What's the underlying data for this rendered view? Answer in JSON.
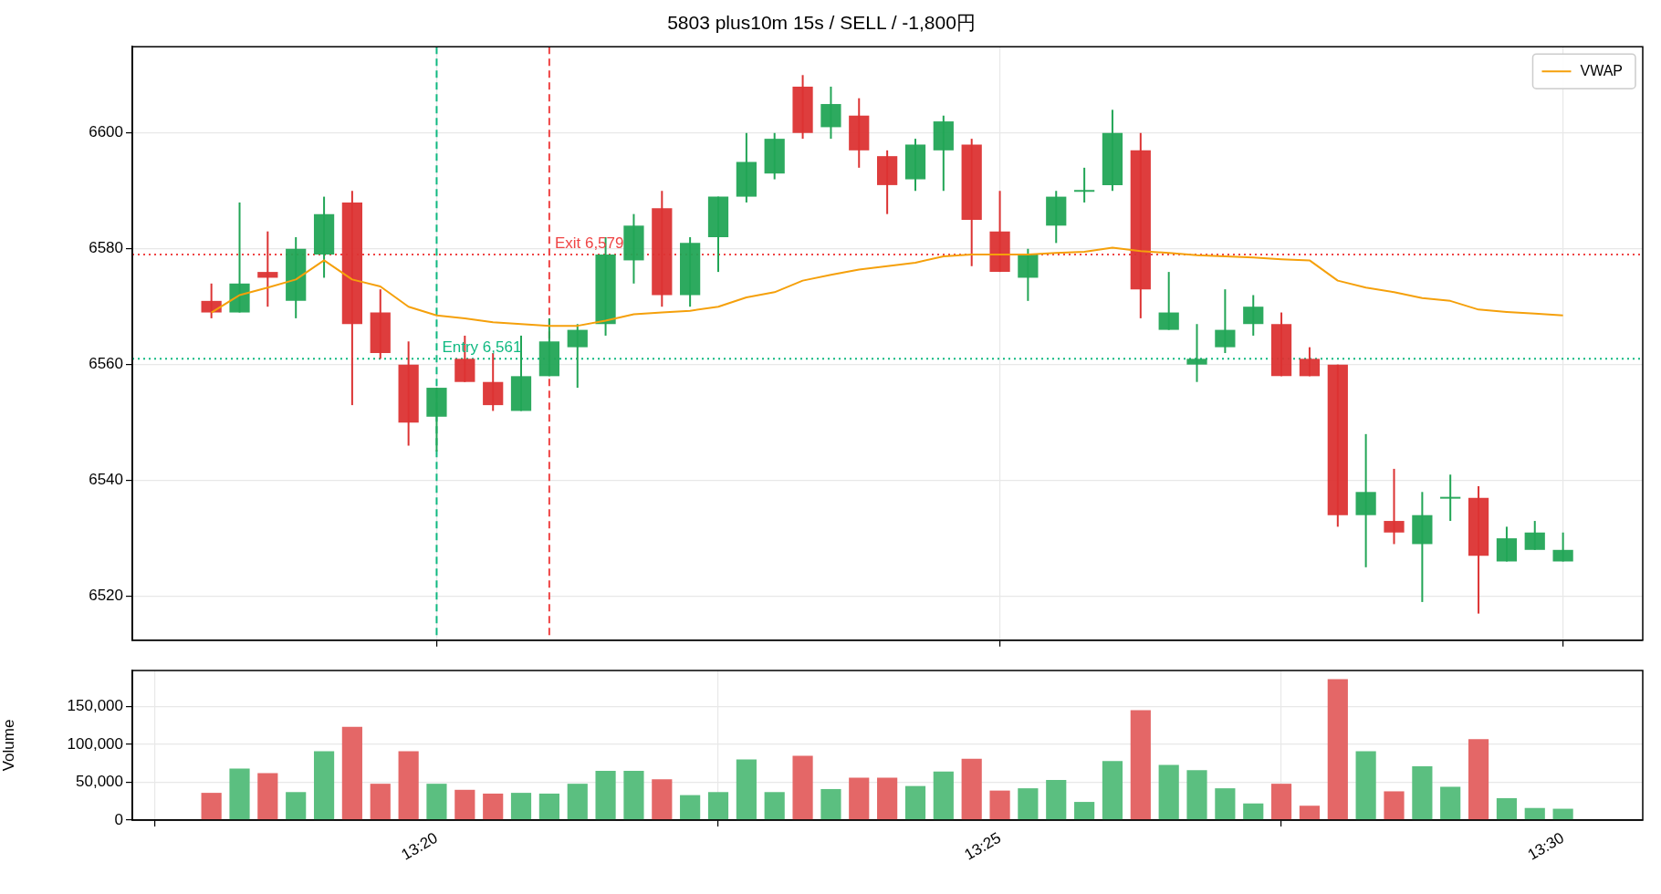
{
  "chart_data": [
    {
      "type": "candlestick",
      "title": "5803 plus10m 15s / SELL / -1,800円",
      "x": [
        13.3,
        13.30417,
        13.30833,
        13.3125,
        13.31667,
        13.32083,
        13.325,
        13.32917,
        13.33333,
        13.3375,
        13.34167,
        13.34583,
        13.35,
        13.35417,
        13.35833,
        13.3625,
        13.36667,
        13.37083,
        13.375,
        13.37917,
        13.38333,
        13.3875,
        13.39167,
        13.39583,
        13.4,
        13.40417,
        13.40833,
        13.4125,
        13.41667,
        13.42083,
        13.425,
        13.42917,
        13.43333,
        13.4375,
        13.44167,
        13.44583,
        13.45,
        13.45417,
        13.45833,
        13.4625,
        13.46667,
        13.47083,
        13.475,
        13.47917,
        13.48333,
        13.4875,
        13.49167,
        13.49583,
        13.5
      ],
      "ohlc": [
        [
          6571,
          6574,
          6568,
          6569
        ],
        [
          6569,
          6588,
          6569,
          6574
        ],
        [
          6576,
          6583,
          6570,
          6575
        ],
        [
          6571,
          6582,
          6568,
          6580
        ],
        [
          6579,
          6589,
          6575,
          6586
        ],
        [
          6588,
          6590,
          6553,
          6567
        ],
        [
          6569,
          6573,
          6561,
          6562
        ],
        [
          6560,
          6564,
          6546,
          6550
        ],
        [
          6551,
          6556,
          6545,
          6556
        ],
        [
          6561,
          6565,
          6557,
          6557
        ],
        [
          6557,
          6562,
          6552,
          6553
        ],
        [
          6552,
          6565,
          6552,
          6558
        ],
        [
          6558,
          6568,
          6558,
          6564
        ],
        [
          6563,
          6567,
          6556,
          6566
        ],
        [
          6567,
          6582,
          6565,
          6579
        ],
        [
          6578,
          6586,
          6574,
          6584
        ],
        [
          6587,
          6590,
          6570,
          6572
        ],
        [
          6572,
          6582,
          6570,
          6581
        ],
        [
          6582,
          6589,
          6576,
          6589
        ],
        [
          6589,
          6600,
          6588,
          6595
        ],
        [
          6593,
          6600,
          6592,
          6599
        ],
        [
          6608,
          6610,
          6599,
          6600
        ],
        [
          6601,
          6608,
          6599,
          6605
        ],
        [
          6603,
          6606,
          6594,
          6597
        ],
        [
          6596,
          6597,
          6586,
          6591
        ],
        [
          6592,
          6599,
          6590,
          6598
        ],
        [
          6597,
          6603,
          6590,
          6602
        ],
        [
          6598,
          6599,
          6577,
          6585
        ],
        [
          6583,
          6590,
          6576,
          6576
        ],
        [
          6575,
          6580,
          6571,
          6579
        ],
        [
          6584,
          6590,
          6581,
          6589
        ],
        [
          6590,
          6594,
          6588,
          6590
        ],
        [
          6591,
          6604,
          6590,
          6600
        ],
        [
          6597,
          6600,
          6568,
          6573
        ],
        [
          6566,
          6576,
          6566,
          6569
        ],
        [
          6560,
          6567,
          6557,
          6561
        ],
        [
          6563,
          6573,
          6562,
          6566
        ],
        [
          6567,
          6572,
          6565,
          6570
        ],
        [
          6567,
          6569,
          6558,
          6558
        ],
        [
          6561,
          6563,
          6558,
          6558
        ],
        [
          6560,
          6560,
          6532,
          6534
        ],
        [
          6534,
          6548,
          6525,
          6538
        ],
        [
          6533,
          6542,
          6529,
          6531
        ],
        [
          6529,
          6538,
          6519,
          6534
        ],
        [
          6537,
          6541,
          6533,
          6537
        ],
        [
          6537,
          6539,
          6517,
          6527
        ],
        [
          6526,
          6532,
          6526,
          6530
        ],
        [
          6528,
          6533,
          6528,
          6531
        ],
        [
          6526,
          6531,
          6526,
          6528
        ]
      ],
      "colors": [
        "#dc3333",
        "#22a556",
        "#dc3333",
        "#22a556",
        "#22a556",
        "#dc3333",
        "#dc3333",
        "#dc3333",
        "#22a556",
        "#dc3333",
        "#dc3333",
        "#22a556",
        "#22a556",
        "#22a556",
        "#22a556",
        "#22a556",
        "#dc3333",
        "#22a556",
        "#22a556",
        "#22a556",
        "#22a556",
        "#dc3333",
        "#22a556",
        "#dc3333",
        "#dc3333",
        "#22a556",
        "#22a556",
        "#dc3333",
        "#dc3333",
        "#22a556",
        "#22a556",
        "#22a556",
        "#22a556",
        "#dc3333",
        "#22a556",
        "#22a556",
        "#22a556",
        "#22a556",
        "#dc3333",
        "#dc3333",
        "#dc3333",
        "#22a556",
        "#dc3333",
        "#22a556",
        "#22a556",
        "#dc3333",
        "#22a556",
        "#22a556",
        "#22a556"
      ],
      "series": [
        {
          "name": "VWAP",
          "type": "line",
          "color": "#f5a00b",
          "values": [
            6569,
            6572,
            6573.3,
            6574.7,
            6578,
            6574.7,
            6573.5,
            6570,
            6568.5,
            6568,
            6567.3,
            6567,
            6566.7,
            6566.7,
            6567.6,
            6568.7,
            6569,
            6569.3,
            6570,
            6571.6,
            6572.5,
            6574.5,
            6575.5,
            6576.4,
            6577,
            6577.6,
            6578.7,
            6579,
            6579,
            6579,
            6579.3,
            6579.5,
            6580.2,
            6579.6,
            6579.3,
            6578.9,
            6578.7,
            6578.5,
            6578.2,
            6578,
            6574.5,
            6573.3,
            6572.5,
            6571.5,
            6571,
            6569.5,
            6569.1,
            6568.8,
            6568.5
          ]
        }
      ],
      "xlim": [
        13.2883,
        13.5118
      ],
      "xticks": [
        {
          "value": 13.33333,
          "label": null
        },
        {
          "value": 13.41667,
          "label": null
        },
        {
          "value": 13.5,
          "label": null
        }
      ],
      "ylim": [
        6512.4,
        6614.9
      ],
      "yticks": [
        6520,
        6540,
        6560,
        6580,
        6600
      ],
      "ref_lines": [
        {
          "axis": "x",
          "value": 13.33333,
          "color": "#10b981",
          "line_style": "dashed"
        },
        {
          "axis": "x",
          "value": 13.35,
          "color": "#ef4444",
          "line_style": "dashed"
        },
        {
          "axis": "y",
          "value": 6561,
          "color": "#10b981",
          "line_style": "dotted"
        },
        {
          "axis": "y",
          "value": 6579,
          "color": "#ef4444",
          "line_style": "dotted"
        }
      ],
      "annotations": [
        {
          "text": "Entry 6,561",
          "x": 13.33333,
          "y": 6561
        },
        {
          "text": "Exit 6,579",
          "x": 13.35,
          "y": 6579
        }
      ],
      "grid": true,
      "legend": "top right",
      "tick_labels": "y"
    },
    {
      "type": "bar",
      "ylabel": "Volume",
      "x": [
        13.3,
        13.30417,
        13.30833,
        13.3125,
        13.31667,
        13.32083,
        13.325,
        13.32917,
        13.33333,
        13.3375,
        13.34167,
        13.34583,
        13.35,
        13.35417,
        13.35833,
        13.3625,
        13.36667,
        13.37083,
        13.375,
        13.37917,
        13.38333,
        13.3875,
        13.39167,
        13.39583,
        13.4,
        13.40417,
        13.40833,
        13.4125,
        13.41667,
        13.42083,
        13.425,
        13.42917,
        13.43333,
        13.4375,
        13.44167,
        13.44583,
        13.45,
        13.45417,
        13.45833,
        13.4625,
        13.46667,
        13.47083,
        13.475,
        13.47917,
        13.48333,
        13.4875,
        13.49167,
        13.49583,
        13.5
      ],
      "values": [
        36000,
        68000,
        62000,
        37000,
        91000,
        123000,
        48000,
        91000,
        48000,
        40000,
        35000,
        36000,
        35000,
        48000,
        65000,
        65000,
        54000,
        33000,
        37000,
        80000,
        37000,
        85000,
        41000,
        56000,
        56000,
        45000,
        64000,
        81000,
        39000,
        42000,
        53000,
        24000,
        78000,
        145000,
        73000,
        66000,
        42000,
        22000,
        48000,
        19000,
        186000,
        91000,
        38000,
        71000,
        44000,
        107000,
        29000,
        16000,
        15000
      ],
      "colors": [
        "#e46767",
        "#5bbf80",
        "#e46767",
        "#5bbf80",
        "#5bbf80",
        "#e46767",
        "#e46767",
        "#e46767",
        "#5bbf80",
        "#e46767",
        "#e46767",
        "#5bbf80",
        "#5bbf80",
        "#5bbf80",
        "#5bbf80",
        "#5bbf80",
        "#e46767",
        "#5bbf80",
        "#5bbf80",
        "#5bbf80",
        "#5bbf80",
        "#e46767",
        "#5bbf80",
        "#e46767",
        "#e46767",
        "#5bbf80",
        "#5bbf80",
        "#e46767",
        "#e46767",
        "#5bbf80",
        "#5bbf80",
        "#5bbf80",
        "#5bbf80",
        "#e46767",
        "#5bbf80",
        "#5bbf80",
        "#5bbf80",
        "#5bbf80",
        "#e46767",
        "#e46767",
        "#e46767",
        "#5bbf80",
        "#e46767",
        "#5bbf80",
        "#5bbf80",
        "#e46767",
        "#5bbf80",
        "#5bbf80",
        "#5bbf80"
      ],
      "xlim": [
        13.2883,
        13.5118
      ],
      "xticks": [
        {
          "value": 13.33333,
          "label": "13:20"
        },
        {
          "value": 13.41667,
          "label": "13:25"
        },
        {
          "value": 13.5,
          "label": "13:30"
        }
      ],
      "ylim": [
        0,
        197500
      ],
      "yticks": [
        0,
        {
          "value": 50000,
          "label": "50,000"
        },
        {
          "value": 100000,
          "label": "100,000"
        },
        {
          "value": 150000,
          "label": "150,000"
        }
      ],
      "grid": true
    }
  ]
}
